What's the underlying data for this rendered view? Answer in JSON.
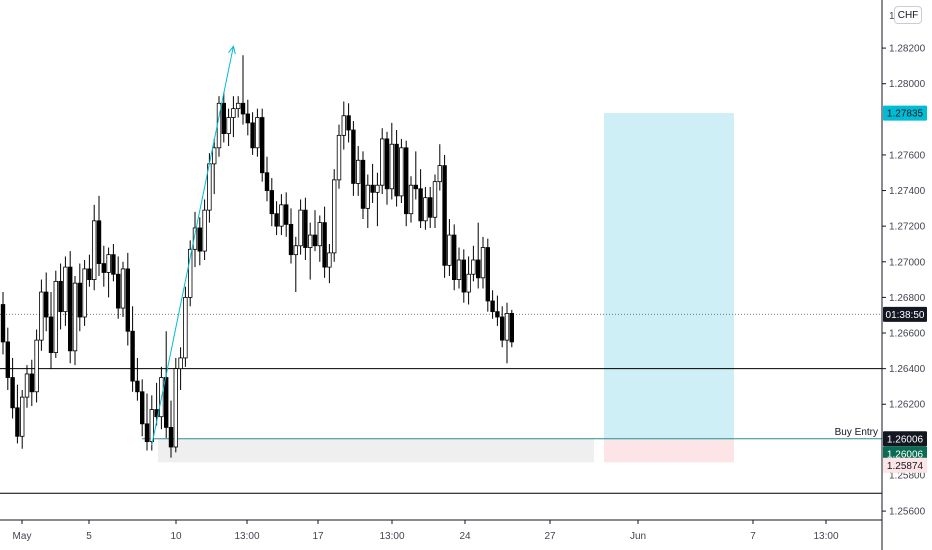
{
  "currency": "CHF",
  "colors": {
    "up": "#ffffff",
    "down": "#000000",
    "wick": "#000000",
    "profit_zone": "#cdeff5",
    "loss_zone": "#fde4e6",
    "target_badge": "#00bcd4",
    "entry_badge": "#131722",
    "price_badge": "#0b6b53",
    "stop_badge": "#fde4e6",
    "trend": "#00bcd4",
    "entry_line": "#2a8c96",
    "zone_grey": "#efefef"
  },
  "chart_data": {
    "type": "candlestick",
    "ylim": [
      1.2555,
      1.2847
    ],
    "y_ticks": [
      "1.28200",
      "1.28000",
      "1.27600",
      "1.27400",
      "1.27200",
      "1.27000",
      "1.26800",
      "1.26600",
      "1.26400",
      "1.26200",
      "1.25600"
    ],
    "x_ticks": [
      "May",
      "5",
      "10",
      "13:00",
      "17",
      "13:00",
      "24",
      "27",
      "Jun",
      "7",
      "13:00"
    ],
    "candles": [
      [
        1.2676,
        1.2683,
        1.2648,
        1.2655
      ],
      [
        1.2655,
        1.2663,
        1.2628,
        1.2635
      ],
      [
        1.2635,
        1.2646,
        1.2612,
        1.2618
      ],
      [
        1.2618,
        1.2631,
        1.2598,
        1.2602
      ],
      [
        1.2602,
        1.2628,
        1.2595,
        1.2624
      ],
      [
        1.2624,
        1.2642,
        1.2618,
        1.2637
      ],
      [
        1.2637,
        1.2645,
        1.2619,
        1.2627
      ],
      [
        1.2627,
        1.2662,
        1.2621,
        1.2656
      ],
      [
        1.2656,
        1.269,
        1.265,
        1.2683
      ],
      [
        1.2683,
        1.2694,
        1.2661,
        1.2669
      ],
      [
        1.2669,
        1.2683,
        1.264,
        1.2649
      ],
      [
        1.2649,
        1.2695,
        1.2646,
        1.2689
      ],
      [
        1.2689,
        1.2699,
        1.2662,
        1.2672
      ],
      [
        1.2672,
        1.2703,
        1.2664,
        1.2697
      ],
      [
        1.2697,
        1.2706,
        1.2643,
        1.265
      ],
      [
        1.265,
        1.2692,
        1.2642,
        1.2688
      ],
      [
        1.2688,
        1.2699,
        1.2661,
        1.2669
      ],
      [
        1.2669,
        1.2701,
        1.2664,
        1.2696
      ],
      [
        1.2696,
        1.2704,
        1.2686,
        1.269
      ],
      [
        1.269,
        1.2732,
        1.2684,
        1.2723
      ],
      [
        1.2723,
        1.2737,
        1.2692,
        1.2699
      ],
      [
        1.2699,
        1.2709,
        1.2686,
        1.2694
      ],
      [
        1.2694,
        1.2708,
        1.268,
        1.2704
      ],
      [
        1.2704,
        1.271,
        1.2689,
        1.2693
      ],
      [
        1.2693,
        1.2703,
        1.2668,
        1.2674
      ],
      [
        1.2674,
        1.27,
        1.2669,
        1.2696
      ],
      [
        1.2696,
        1.2705,
        1.2653,
        1.2661
      ],
      [
        1.2661,
        1.2675,
        1.2627,
        1.2633
      ],
      [
        1.2633,
        1.2646,
        1.2622,
        1.2627
      ],
      [
        1.2627,
        1.2634,
        1.2602,
        1.2609
      ],
      [
        1.2609,
        1.2626,
        1.2594,
        1.2599
      ],
      [
        1.2599,
        1.2625,
        1.2594,
        1.2617
      ],
      [
        1.2617,
        1.2632,
        1.2608,
        1.2613
      ],
      [
        1.2613,
        1.2641,
        1.2606,
        1.2635
      ],
      [
        1.2635,
        1.2661,
        1.2601,
        1.2607
      ],
      [
        1.2607,
        1.2622,
        1.259,
        1.2596
      ],
      [
        1.2596,
        1.2646,
        1.2593,
        1.264
      ],
      [
        1.264,
        1.2652,
        1.2628,
        1.2646
      ],
      [
        1.2646,
        1.2686,
        1.2641,
        1.268
      ],
      [
        1.268,
        1.2712,
        1.2675,
        1.2707
      ],
      [
        1.2707,
        1.2728,
        1.2697,
        1.2719
      ],
      [
        1.2719,
        1.2725,
        1.2698,
        1.2706
      ],
      [
        1.2706,
        1.2735,
        1.2701,
        1.2729
      ],
      [
        1.2729,
        1.2761,
        1.2722,
        1.2755
      ],
      [
        1.2755,
        1.2769,
        1.2738,
        1.2764
      ],
      [
        1.2764,
        1.2793,
        1.2759,
        1.2789
      ],
      [
        1.2789,
        1.2795,
        1.2767,
        1.2772
      ],
      [
        1.2772,
        1.2786,
        1.2765,
        1.2781
      ],
      [
        1.2781,
        1.2793,
        1.277,
        1.2786
      ],
      [
        1.2786,
        1.2793,
        1.2781,
        1.2789
      ],
      [
        1.2789,
        1.2816,
        1.2777,
        1.2783
      ],
      [
        1.2783,
        1.2791,
        1.2771,
        1.2778
      ],
      [
        1.2778,
        1.2784,
        1.276,
        1.2764
      ],
      [
        1.2764,
        1.2786,
        1.2759,
        1.2781
      ],
      [
        1.2781,
        1.2786,
        1.2745,
        1.275
      ],
      [
        1.275,
        1.2759,
        1.2734,
        1.274
      ],
      [
        1.274,
        1.2747,
        1.272,
        1.2727
      ],
      [
        1.2727,
        1.2734,
        1.2715,
        1.272
      ],
      [
        1.272,
        1.2738,
        1.2715,
        1.2732
      ],
      [
        1.2732,
        1.2739,
        1.2714,
        1.2721
      ],
      [
        1.2721,
        1.273,
        1.2699,
        1.2704
      ],
      [
        1.2704,
        1.2714,
        1.2683,
        1.2709
      ],
      [
        1.2709,
        1.2735,
        1.2704,
        1.2729
      ],
      [
        1.2729,
        1.2736,
        1.2701,
        1.2708
      ],
      [
        1.2708,
        1.2722,
        1.269,
        1.2715
      ],
      [
        1.2715,
        1.2729,
        1.2706,
        1.2709
      ],
      [
        1.2709,
        1.2726,
        1.27,
        1.2722
      ],
      [
        1.2722,
        1.2731,
        1.2691,
        1.2697
      ],
      [
        1.2697,
        1.271,
        1.2688,
        1.2705
      ],
      [
        1.2705,
        1.2752,
        1.27,
        1.2746
      ],
      [
        1.2746,
        1.2777,
        1.2741,
        1.2771
      ],
      [
        1.2771,
        1.279,
        1.2763,
        1.2782
      ],
      [
        1.2782,
        1.2789,
        1.2767,
        1.2774
      ],
      [
        1.2774,
        1.2779,
        1.2737,
        1.2744
      ],
      [
        1.2744,
        1.2765,
        1.2737,
        1.2757
      ],
      [
        1.2757,
        1.2762,
        1.2724,
        1.273
      ],
      [
        1.273,
        1.2749,
        1.2719,
        1.2743
      ],
      [
        1.2743,
        1.2755,
        1.2733,
        1.2739
      ],
      [
        1.2739,
        1.275,
        1.272,
        1.2743
      ],
      [
        1.2743,
        1.2775,
        1.2738,
        1.2769
      ],
      [
        1.2769,
        1.2773,
        1.2732,
        1.2741
      ],
      [
        1.2741,
        1.2778,
        1.2735,
        1.2766
      ],
      [
        1.2766,
        1.2774,
        1.2731,
        1.2737
      ],
      [
        1.2737,
        1.2769,
        1.2733,
        1.2764
      ],
      [
        1.2764,
        1.2768,
        1.272,
        1.2727
      ],
      [
        1.2727,
        1.2748,
        1.2722,
        1.2743
      ],
      [
        1.2743,
        1.2762,
        1.2735,
        1.2741
      ],
      [
        1.2741,
        1.2752,
        1.2719,
        1.2723
      ],
      [
        1.2723,
        1.2742,
        1.2718,
        1.2736
      ],
      [
        1.2736,
        1.2742,
        1.2719,
        1.2725
      ],
      [
        1.2725,
        1.2749,
        1.2719,
        1.2745
      ],
      [
        1.2745,
        1.2766,
        1.274,
        1.2754
      ],
      [
        1.2754,
        1.276,
        1.2691,
        1.2698
      ],
      [
        1.2698,
        1.2724,
        1.2692,
        1.2715
      ],
      [
        1.2715,
        1.2721,
        1.2684,
        1.269
      ],
      [
        1.269,
        1.2708,
        1.2685,
        1.2701
      ],
      [
        1.2701,
        1.2707,
        1.2677,
        1.2683
      ],
      [
        1.2683,
        1.2703,
        1.2676,
        1.2693
      ],
      [
        1.2693,
        1.2709,
        1.2689,
        1.2701
      ],
      [
        1.2701,
        1.2722,
        1.2685,
        1.2691
      ],
      [
        1.2691,
        1.2714,
        1.2685,
        1.2708
      ],
      [
        1.2708,
        1.2713,
        1.2672,
        1.2678
      ],
      [
        1.2678,
        1.2684,
        1.2668,
        1.2672
      ],
      [
        1.2672,
        1.2681,
        1.2664,
        1.2669
      ],
      [
        1.2669,
        1.2675,
        1.2652,
        1.2656
      ],
      [
        1.2656,
        1.2677,
        1.2643,
        1.2671
      ],
      [
        1.2671,
        1.2673,
        1.2652,
        1.2655
      ]
    ],
    "levels": {
      "line_top": 1.26705,
      "level_1": 1.264,
      "entry": 1.26006,
      "stop": 1.25874,
      "bottom": 1.257,
      "target": 1.27835
    },
    "trend_line": {
      "from": [
        1.2597,
        31
      ],
      "to": [
        1.2821,
        48
      ]
    },
    "entry_label": "Buy Entry",
    "badges": {
      "target": "1.27835",
      "timer": "01:38:50",
      "entry": "1.26006",
      "price": "1.26006",
      "stop": "1.25874",
      "stop_under": "1.25800"
    }
  }
}
